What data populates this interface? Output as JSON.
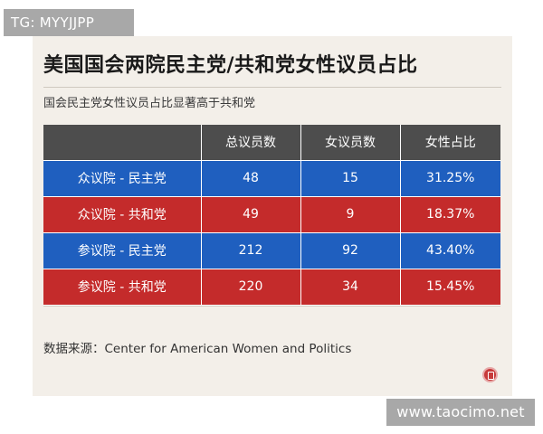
{
  "watermark_top": "TG: MYYJJPP",
  "watermark_bottom": "www.taocimo.net",
  "card": {
    "title": "美国国会两院民主党/共和党女性议员占比",
    "subtitle": "国会民主党女性议员占比显著高于共和党",
    "source": "数据来源：Center for American Women and Politics"
  },
  "table": {
    "headers": [
      "",
      "总议员数",
      "女议员数",
      "女性占比"
    ],
    "rows": [
      {
        "chamber": "众议院 - 民主党",
        "total": "48",
        "women": "15",
        "share": "31.25%",
        "color": "#1f5fbf"
      },
      {
        "chamber": "众议院 - 共和党",
        "total": "49",
        "women": "9",
        "share": "18.37%",
        "color": "#c42b2b"
      },
      {
        "chamber": "参议院 - 民主党",
        "total": "212",
        "women": "92",
        "share": "43.40%",
        "color": "#1f5fbf"
      },
      {
        "chamber": "参议院 - 共和党",
        "total": "220",
        "women": "34",
        "share": "15.45%",
        "color": "#c42b2b"
      }
    ]
  },
  "colors": {
    "card_bg": "#f3efe9",
    "header_bg": "#4d4d4d",
    "democrat_blue": "#1f5fbf",
    "republican_red": "#c42b2b",
    "watermark_bg": "#a8a8a8"
  },
  "icons": {
    "logo": "circular-seal-logo-icon"
  }
}
